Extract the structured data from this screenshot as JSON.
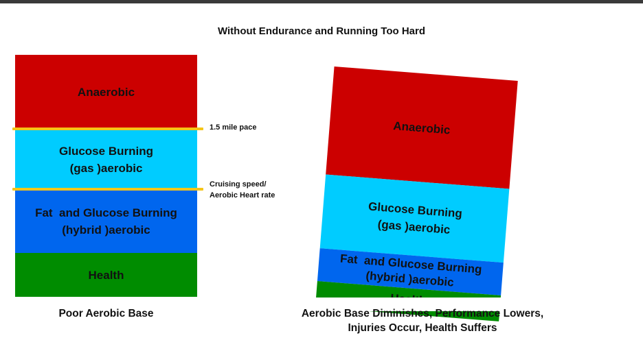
{
  "title": "Without Endurance and Running Too Hard",
  "colors": {
    "anaerobic": "#cc0000",
    "glucose": "#00ccff",
    "hybrid": "#0066ee",
    "health": "#008c00",
    "marker": "#f5c518",
    "top_bar": "#3a3a3a"
  },
  "left_stack": {
    "anaerobic": "Anaerobic",
    "glucose_line1": "Glucose Burning",
    "glucose_line2": "(gas )aerobic",
    "hybrid_line1": "Fat  and Glucose Burning",
    "hybrid_line2": "(hybrid )aerobic",
    "health": "Health",
    "caption": "Poor Aerobic Base"
  },
  "markers": {
    "pace_label": "1.5 mile pace",
    "cruising_line1": "Cruising speed/",
    "cruising_line2": "Aerobic Heart rate"
  },
  "right_stack": {
    "anaerobic": "Anaerobic",
    "glucose_line1": "Glucose Burning",
    "glucose_line2": "(gas )aerobic",
    "hybrid_line1": "Fat  and Glucose Burning",
    "hybrid_line2": "(hybrid )aerobic",
    "health": "Health",
    "caption_line1": "Aerobic Base Diminishes, Performance Lowers,",
    "caption_line2": "Injuries Occur, Health Suffers"
  }
}
